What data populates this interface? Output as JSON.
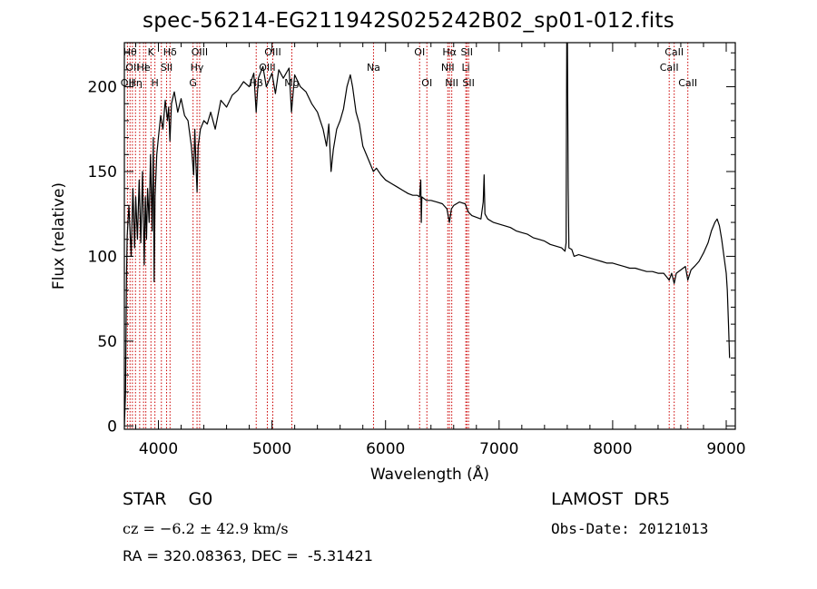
{
  "title": "spec-56214-EG211942S025242B02_sp01-012.fits",
  "footer": {
    "object_class": "STAR    G0",
    "survey": "LAMOST  DR5",
    "cz": "cz = −6.2 ± 42.9 km/s",
    "obs_date": "Obs-Date: 20121013",
    "coords": "RA = 320.08363, DEC =  -5.31421"
  },
  "chart_data": {
    "type": "line",
    "title": "spec-56214-EG211942S025242B02_sp01-012.fits",
    "xlabel": "Wavelength (Å)",
    "ylabel": "Flux (relative)",
    "xlim": [
      3700,
      9080
    ],
    "ylim": [
      -2,
      226
    ],
    "xticks": [
      4000,
      5000,
      6000,
      7000,
      8000,
      9000
    ],
    "yticks": [
      0,
      50,
      100,
      150,
      200
    ],
    "line_color": "#000000",
    "marker_color": "#cc0000",
    "series": [
      {
        "points": [
          [
            3700,
            0
          ],
          [
            3710,
            20
          ],
          [
            3718,
            85
          ],
          [
            3725,
            112
          ],
          [
            3740,
            130
          ],
          [
            3760,
            100
          ],
          [
            3775,
            140
          ],
          [
            3790,
            105
          ],
          [
            3800,
            135
          ],
          [
            3815,
            110
          ],
          [
            3830,
            145
          ],
          [
            3845,
            108
          ],
          [
            3860,
            150
          ],
          [
            3875,
            95
          ],
          [
            3885,
            135
          ],
          [
            3895,
            110
          ],
          [
            3905,
            140
          ],
          [
            3918,
            120
          ],
          [
            3930,
            160
          ],
          [
            3945,
            115
          ],
          [
            3955,
            170
          ],
          [
            3962,
            85
          ],
          [
            3970,
            135
          ],
          [
            3985,
            160
          ],
          [
            4000,
            170
          ],
          [
            4020,
            183
          ],
          [
            4040,
            175
          ],
          [
            4060,
            192
          ],
          [
            4080,
            180
          ],
          [
            4090,
            188
          ],
          [
            4101,
            168
          ],
          [
            4115,
            190
          ],
          [
            4140,
            197
          ],
          [
            4170,
            185
          ],
          [
            4200,
            193
          ],
          [
            4230,
            183
          ],
          [
            4260,
            180
          ],
          [
            4290,
            165
          ],
          [
            4310,
            148
          ],
          [
            4320,
            175
          ],
          [
            4330,
            155
          ],
          [
            4340,
            138
          ],
          [
            4350,
            165
          ],
          [
            4370,
            175
          ],
          [
            4400,
            180
          ],
          [
            4430,
            178
          ],
          [
            4460,
            185
          ],
          [
            4500,
            175
          ],
          [
            4550,
            192
          ],
          [
            4600,
            188
          ],
          [
            4650,
            195
          ],
          [
            4700,
            198
          ],
          [
            4750,
            203
          ],
          [
            4800,
            200
          ],
          [
            4840,
            208
          ],
          [
            4861,
            185
          ],
          [
            4880,
            205
          ],
          [
            4920,
            212
          ],
          [
            4950,
            200
          ],
          [
            5000,
            208
          ],
          [
            5030,
            196
          ],
          [
            5060,
            210
          ],
          [
            5100,
            205
          ],
          [
            5150,
            211
          ],
          [
            5172,
            185
          ],
          [
            5200,
            207
          ],
          [
            5250,
            200
          ],
          [
            5300,
            197
          ],
          [
            5350,
            190
          ],
          [
            5400,
            185
          ],
          [
            5450,
            175
          ],
          [
            5480,
            165
          ],
          [
            5500,
            178
          ],
          [
            5520,
            150
          ],
          [
            5540,
            163
          ],
          [
            5570,
            175
          ],
          [
            5600,
            180
          ],
          [
            5630,
            187
          ],
          [
            5660,
            200
          ],
          [
            5690,
            207
          ],
          [
            5710,
            200
          ],
          [
            5740,
            185
          ],
          [
            5770,
            178
          ],
          [
            5800,
            165
          ],
          [
            5850,
            157
          ],
          [
            5893,
            150
          ],
          [
            5920,
            152
          ],
          [
            5960,
            148
          ],
          [
            6000,
            145
          ],
          [
            6050,
            143
          ],
          [
            6100,
            141
          ],
          [
            6150,
            139
          ],
          [
            6200,
            137
          ],
          [
            6240,
            136
          ],
          [
            6280,
            136
          ],
          [
            6300,
            135
          ],
          [
            6310,
            145
          ],
          [
            6315,
            120
          ],
          [
            6320,
            135
          ],
          [
            6360,
            133
          ],
          [
            6400,
            133
          ],
          [
            6450,
            132
          ],
          [
            6500,
            131
          ],
          [
            6540,
            128
          ],
          [
            6563,
            120
          ],
          [
            6580,
            128
          ],
          [
            6600,
            130
          ],
          [
            6650,
            132
          ],
          [
            6700,
            131
          ],
          [
            6730,
            126
          ],
          [
            6760,
            124
          ],
          [
            6800,
            123
          ],
          [
            6840,
            122
          ],
          [
            6860,
            132
          ],
          [
            6868,
            148
          ],
          [
            6875,
            125
          ],
          [
            6900,
            122
          ],
          [
            6950,
            120
          ],
          [
            7000,
            119
          ],
          [
            7050,
            118
          ],
          [
            7100,
            117
          ],
          [
            7150,
            115
          ],
          [
            7200,
            114
          ],
          [
            7250,
            113
          ],
          [
            7300,
            111
          ],
          [
            7350,
            110
          ],
          [
            7400,
            109
          ],
          [
            7450,
            107
          ],
          [
            7500,
            106
          ],
          [
            7550,
            105
          ],
          [
            7580,
            103
          ],
          [
            7590,
            108
          ],
          [
            7596,
            235
          ],
          [
            7602,
            225
          ],
          [
            7608,
            140
          ],
          [
            7615,
            105
          ],
          [
            7640,
            104
          ],
          [
            7660,
            100
          ],
          [
            7700,
            101
          ],
          [
            7750,
            100
          ],
          [
            7800,
            99
          ],
          [
            7850,
            98
          ],
          [
            7900,
            97
          ],
          [
            7950,
            96
          ],
          [
            8000,
            96
          ],
          [
            8050,
            95
          ],
          [
            8100,
            94
          ],
          [
            8150,
            93
          ],
          [
            8200,
            93
          ],
          [
            8250,
            92
          ],
          [
            8300,
            91
          ],
          [
            8350,
            91
          ],
          [
            8400,
            90
          ],
          [
            8450,
            90
          ],
          [
            8498,
            86
          ],
          [
            8520,
            90
          ],
          [
            8542,
            84
          ],
          [
            8560,
            90
          ],
          [
            8600,
            92
          ],
          [
            8640,
            94
          ],
          [
            8662,
            86
          ],
          [
            8690,
            92
          ],
          [
            8720,
            94
          ],
          [
            8760,
            97
          ],
          [
            8800,
            102
          ],
          [
            8840,
            108
          ],
          [
            8870,
            115
          ],
          [
            8900,
            120
          ],
          [
            8920,
            122
          ],
          [
            8940,
            118
          ],
          [
            8960,
            110
          ],
          [
            8980,
            100
          ],
          [
            9000,
            90
          ],
          [
            9010,
            80
          ],
          [
            9020,
            60
          ],
          [
            9030,
            40
          ]
        ]
      }
    ],
    "markers": [
      {
        "wavelength": 3727,
        "label": "OII",
        "row": 2
      },
      {
        "wavelength": 3750,
        "label": "Hθ",
        "row": 0
      },
      {
        "wavelength": 3771,
        "label": "OII",
        "row": 1
      },
      {
        "wavelength": 3798,
        "label": "Hη",
        "row": 2
      },
      {
        "wavelength": 3835,
        "label": "",
        "row": 0
      },
      {
        "wavelength": 3869,
        "label": "He",
        "row": 1
      },
      {
        "wavelength": 3889,
        "label": "I",
        "row": 1
      },
      {
        "wavelength": 3934,
        "label": "K",
        "row": 0
      },
      {
        "wavelength": 3969,
        "label": "H",
        "row": 2
      },
      {
        "wavelength": 4026,
        "label": "",
        "row": 0
      },
      {
        "wavelength": 4072,
        "label": "SII",
        "row": 1
      },
      {
        "wavelength": 4102,
        "label": "Hδ",
        "row": 0
      },
      {
        "wavelength": 4305,
        "label": "G",
        "row": 2
      },
      {
        "wavelength": 4340,
        "label": "Hγ",
        "row": 1
      },
      {
        "wavelength": 4363,
        "label": "OIII",
        "row": 0
      },
      {
        "wavelength": 4861,
        "label": "Hβ",
        "row": 2
      },
      {
        "wavelength": 4959,
        "label": "OIII",
        "row": 1
      },
      {
        "wavelength": 5007,
        "label": "OIII",
        "row": 0
      },
      {
        "wavelength": 5175,
        "label": "Mg",
        "row": 2
      },
      {
        "wavelength": 5894,
        "label": "Na",
        "row": 1
      },
      {
        "wavelength": 6300,
        "label": "OI",
        "row": 0
      },
      {
        "wavelength": 6364,
        "label": "OI",
        "row": 2
      },
      {
        "wavelength": 6548,
        "label": "NII",
        "row": 1
      },
      {
        "wavelength": 6563,
        "label": "Hα",
        "row": 0
      },
      {
        "wavelength": 6583,
        "label": "NII",
        "row": 2
      },
      {
        "wavelength": 6707,
        "label": "Li",
        "row": 1
      },
      {
        "wavelength": 6716,
        "label": "SII",
        "row": 0
      },
      {
        "wavelength": 6731,
        "label": "SII",
        "row": 2
      },
      {
        "wavelength": 8498,
        "label": "CaII",
        "row": 1
      },
      {
        "wavelength": 8542,
        "label": "CaII",
        "row": 0
      },
      {
        "wavelength": 8662,
        "label": "CaII",
        "row": 2
      }
    ]
  }
}
